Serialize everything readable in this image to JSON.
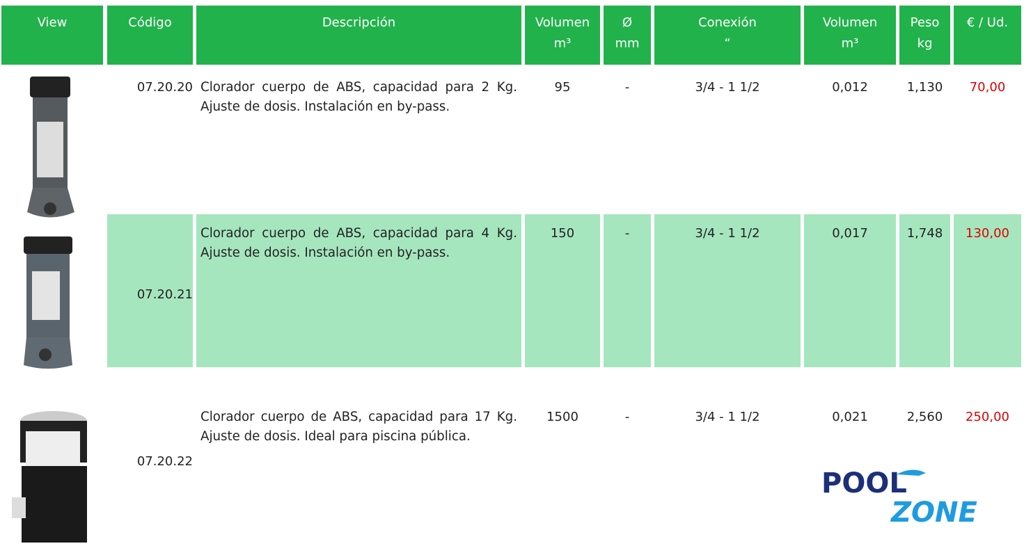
{
  "header": [
    "View",
    "Código",
    "Descripción",
    "Volumen\nm³",
    "Ø\nmm",
    "Conexión\n“",
    "Volumen\nm³",
    "Peso\nkg",
    "€ / Ud."
  ],
  "rows": [
    {
      "code": "07.20.20",
      "description": "Clorador cuerpo de ABS, capacidad para 2 Kg. Ajuste de dosis. Instalación en by-pass.",
      "volume": "95",
      "diameter": "-",
      "connection": "3/4 -  1 1/2",
      "volume_m3": "0,012",
      "weight": "1,130",
      "price": "70,00"
    },
    {
      "code": "07.20.21",
      "description": "Clorador cuerpo de ABS, capacidad para 4 Kg. Ajuste de dosis. Instalación en by-pass.",
      "volume": "150",
      "diameter": "-",
      "connection": "3/4 -  1 1/2",
      "volume_m3": "0,017",
      "weight": "1,748",
      "price": "130,00"
    },
    {
      "code": "07.20.22",
      "description": "Clorador cuerpo de ABS, capacidad para 17 Kg. Ajuste de dosis. Ideal para piscina pública.",
      "volume": "1500",
      "diameter": "-",
      "connection": "3/4 -  1 1/2",
      "volume_m3": "0,021",
      "weight": "2,560",
      "price": "250,00"
    }
  ],
  "logo": {
    "top": "POOL",
    "bottom": "ZONE"
  }
}
